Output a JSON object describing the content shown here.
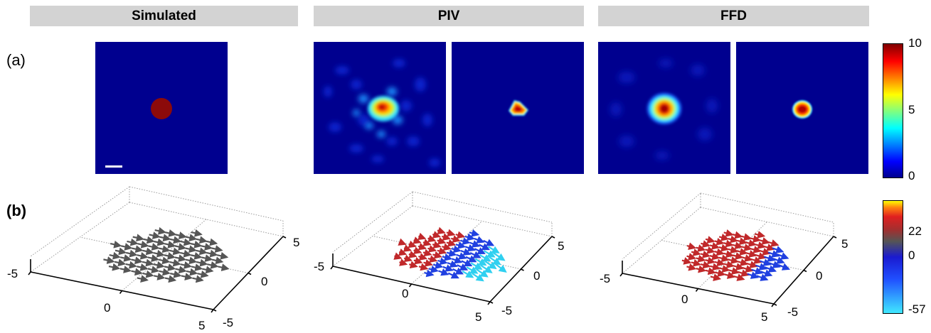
{
  "headers": {
    "simulated": "Simulated",
    "piv": "PIV",
    "ffd": "FFD"
  },
  "panel_labels": {
    "a": "(a)",
    "b": "(b)"
  },
  "colorbar_a": {
    "max": "10",
    "mid": "5",
    "min": "0",
    "colormap": "jet"
  },
  "colorbar_b": {
    "max": "22",
    "zero": "0",
    "min": "-57",
    "colormap": "cyan-blue-gray-red-yellow"
  },
  "axis_ticks": {
    "neg": "-5",
    "zero": "0",
    "pos": "5"
  },
  "colors": {
    "background_blue": "#00008f",
    "header_gray": "#d3d3d3",
    "arrow_gray": "#555555",
    "arrow_red": "#c0282a",
    "arrow_blue": "#2040e0",
    "arrow_cyan": "#30d0f0"
  }
}
